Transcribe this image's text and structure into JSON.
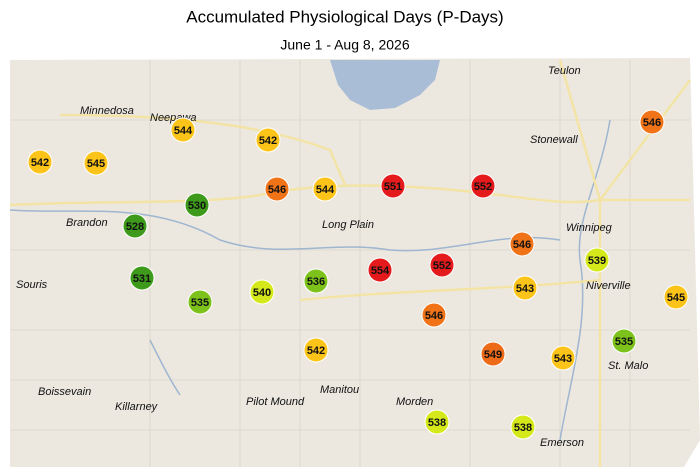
{
  "title": "Accumulated Physiological Days (P-Days)",
  "subtitle": "June 1 - Aug 8, 2026",
  "places": [
    "Teulon",
    "Minnedosa",
    "Neepawa",
    "Stonewall",
    "Brandon",
    "Long Plain",
    "Winnipeg",
    "Souris",
    "Niverville",
    "St. Malo",
    "Boissevain",
    "Killarney",
    "Pilot Mound",
    "Manitou",
    "Morden",
    "Emerson"
  ],
  "stations": [
    {
      "value": 542,
      "color": "#fcc419"
    },
    {
      "value": 545,
      "color": "#fcc419"
    },
    {
      "value": 544,
      "color": "#fcc419"
    },
    {
      "value": 542,
      "color": "#fcc419"
    },
    {
      "value": 530,
      "color": "#3e9a1a"
    },
    {
      "value": 528,
      "color": "#3e9a1a"
    },
    {
      "value": 546,
      "color": "#f07318"
    },
    {
      "value": 544,
      "color": "#fcc419"
    },
    {
      "value": 551,
      "color": "#e41a1c"
    },
    {
      "value": 552,
      "color": "#e41a1c"
    },
    {
      "value": 546,
      "color": "#f07318"
    },
    {
      "value": 546,
      "color": "#f07318"
    },
    {
      "value": 539,
      "color": "#d4e81a"
    },
    {
      "value": 531,
      "color": "#3e9a1a"
    },
    {
      "value": 535,
      "color": "#7cc21b"
    },
    {
      "value": 540,
      "color": "#d4e81a"
    },
    {
      "value": 536,
      "color": "#7cc21b"
    },
    {
      "value": 554,
      "color": "#e41a1c"
    },
    {
      "value": 552,
      "color": "#e41a1c"
    },
    {
      "value": 543,
      "color": "#fcc419"
    },
    {
      "value": 546,
      "color": "#f07318"
    },
    {
      "value": 545,
      "color": "#fcc419"
    },
    {
      "value": 542,
      "color": "#fcc419"
    },
    {
      "value": 549,
      "color": "#ec6a18"
    },
    {
      "value": 543,
      "color": "#fcc419"
    },
    {
      "value": 535,
      "color": "#7cc21b"
    },
    {
      "value": 538,
      "color": "#d4e81a"
    },
    {
      "value": 538,
      "color": "#d4e81a"
    }
  ]
}
